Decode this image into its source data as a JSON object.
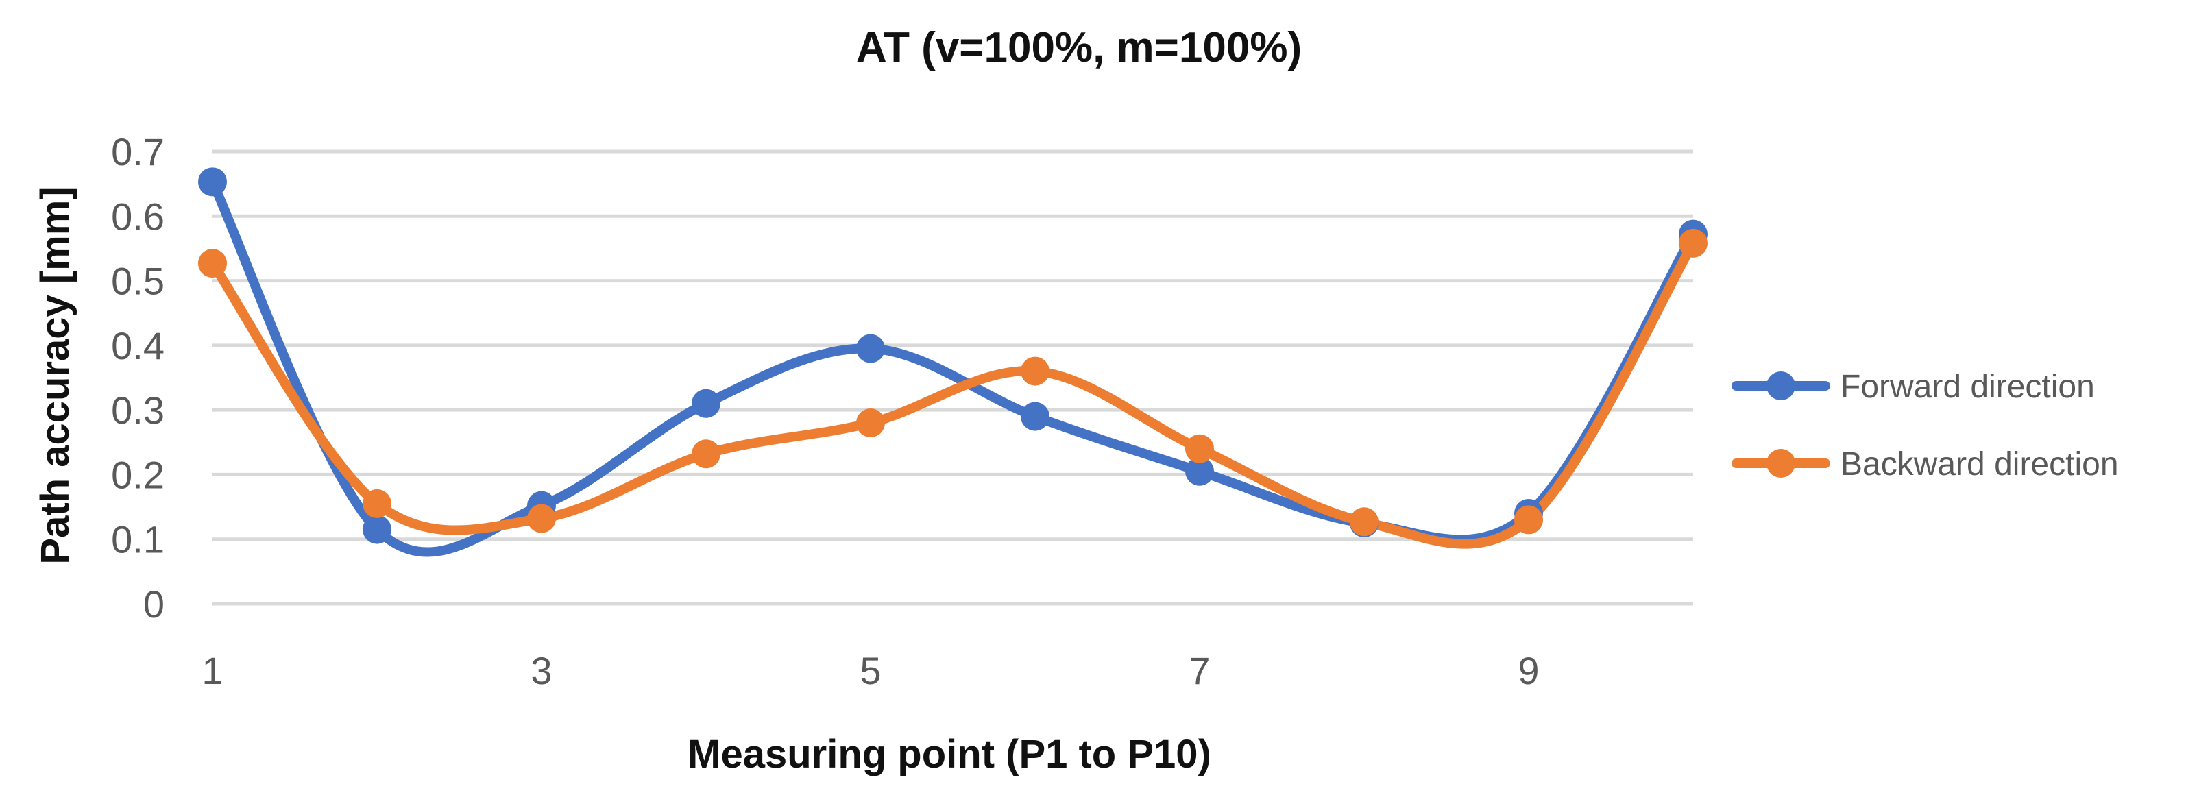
{
  "chart_data": {
    "type": "line",
    "title": "AT (v=100%, m=100%)",
    "xlabel": "Measuring point (P1 to P10)",
    "ylabel": "Path accuracy [mm]",
    "x": [
      1,
      2,
      3,
      4,
      5,
      6,
      7,
      8,
      9,
      10
    ],
    "x_tick_labels": [
      "1",
      "3",
      "5",
      "7",
      "9"
    ],
    "x_tick_values": [
      1,
      3,
      5,
      7,
      9
    ],
    "ylim": [
      0,
      0.7
    ],
    "y_ticks": [
      0,
      0.1,
      0.2,
      0.3,
      0.4,
      0.5,
      0.6,
      0.7
    ],
    "y_tick_labels": [
      "0",
      "0.1",
      "0.2",
      "0.3",
      "0.4",
      "0.5",
      "0.6",
      "0.7"
    ],
    "grid": true,
    "smoothed": true,
    "legend_position": "right",
    "series": [
      {
        "name": "Forward direction",
        "color": "#4472c4",
        "values": [
          0.653,
          0.115,
          0.152,
          0.31,
          0.395,
          0.29,
          0.205,
          0.125,
          0.14,
          0.572
        ]
      },
      {
        "name": "Backward direction",
        "color": "#ed7d31",
        "values": [
          0.527,
          0.155,
          0.132,
          0.232,
          0.28,
          0.36,
          0.24,
          0.127,
          0.13,
          0.558
        ]
      }
    ]
  }
}
